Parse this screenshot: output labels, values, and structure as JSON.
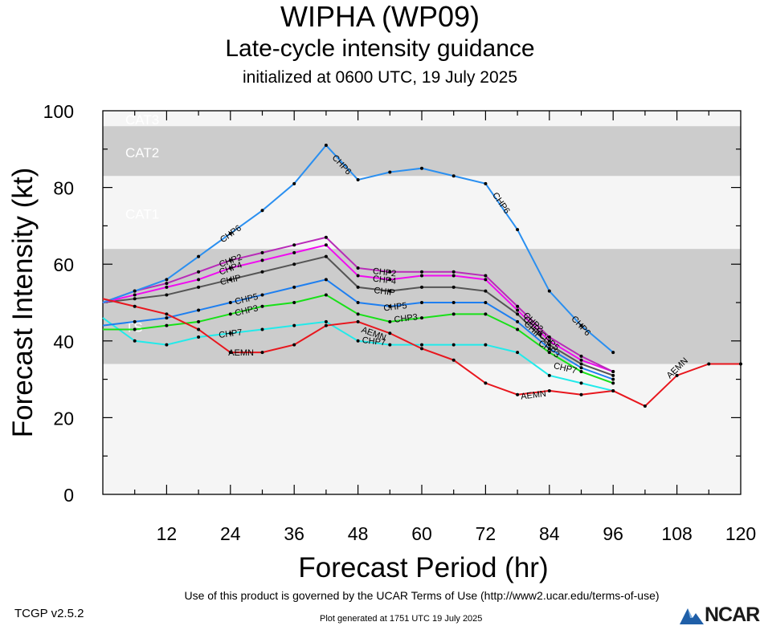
{
  "header": {
    "title": "WIPHA (WP09)",
    "subtitle": "Late-cycle intensity guidance",
    "initialized": "initialized at 0600 UTC, 19 July 2025"
  },
  "footer": {
    "terms": "Use of this product is governed by the UCAR Terms of Use (http://www2.ucar.edu/terms-of-use)",
    "version": "TCGP v2.5.2",
    "generated": "Plot generated at 1751 UTC   19 July 2025",
    "logo_text": "NCAR"
  },
  "colors": {
    "band_dark": "#cccccc",
    "band_light": "#f5f5f5",
    "AEMN": "#e8161d",
    "CHP2": "#b82bb8",
    "CHP3": "#18e018",
    "CHP4": "#f00cf0",
    "CHP5": "#1e7ff0",
    "CHP6": "#2a8ff0",
    "CHP7": "#22eaea",
    "CHIP": "#555555"
  },
  "chart_data": {
    "type": "line",
    "xlabel": "Forecast Period (hr)",
    "ylabel": "Forecast Intensity (kt)",
    "xlim": [
      0,
      120
    ],
    "ylim": [
      0,
      100
    ],
    "xticks": [
      12,
      24,
      36,
      48,
      60,
      72,
      84,
      96,
      108,
      120
    ],
    "yticks": [
      0,
      20,
      40,
      60,
      80,
      100
    ],
    "bands": [
      {
        "label": "",
        "from": 0,
        "to": 34,
        "shade": "light"
      },
      {
        "label": "TS",
        "from": 34,
        "to": 64,
        "shade": "dark"
      },
      {
        "label": "CAT1",
        "from": 64,
        "to": 83,
        "shade": "light"
      },
      {
        "label": "CAT2",
        "from": 83,
        "to": 96,
        "shade": "dark"
      },
      {
        "label": "CAT3",
        "from": 96,
        "to": 100,
        "shade": "light"
      }
    ],
    "series": [
      {
        "name": "CHP6",
        "x": [
          0,
          6,
          12,
          18,
          24,
          30,
          36,
          42,
          48,
          54,
          60,
          66,
          72,
          78,
          84,
          90,
          96
        ],
        "y": [
          50,
          53,
          56,
          62,
          68,
          74,
          81,
          91,
          82,
          84,
          85,
          83,
          81,
          69,
          53,
          44,
          37
        ]
      },
      {
        "name": "CHP2",
        "x": [
          0,
          6,
          12,
          18,
          24,
          30,
          36,
          42,
          48,
          54,
          60,
          66,
          72,
          78,
          84,
          90,
          96
        ],
        "y": [
          50,
          53,
          55,
          58,
          61,
          63,
          65,
          67,
          59,
          58,
          58,
          58,
          57,
          49,
          41,
          36,
          32
        ]
      },
      {
        "name": "CHP4",
        "x": [
          0,
          6,
          12,
          18,
          24,
          30,
          36,
          42,
          48,
          54,
          60,
          66,
          72,
          78,
          84,
          90,
          96
        ],
        "y": [
          50,
          52,
          54,
          56,
          59,
          61,
          63,
          65,
          57,
          56,
          57,
          57,
          56,
          48,
          40,
          35,
          32
        ]
      },
      {
        "name": "CHIP",
        "x": [
          0,
          6,
          12,
          18,
          24,
          30,
          36,
          42,
          48,
          54,
          60,
          66,
          72,
          78,
          84,
          90,
          96
        ],
        "y": [
          50,
          51,
          52,
          54,
          56,
          58,
          60,
          62,
          54,
          53,
          54,
          54,
          53,
          47,
          39,
          34,
          31
        ]
      },
      {
        "name": "CHP5",
        "x": [
          0,
          6,
          12,
          18,
          24,
          30,
          36,
          42,
          48,
          54,
          60,
          66,
          72,
          78,
          84,
          90,
          96
        ],
        "y": [
          44,
          45,
          46,
          48,
          50,
          52,
          54,
          56,
          50,
          49,
          50,
          50,
          50,
          45,
          38,
          33,
          30
        ]
      },
      {
        "name": "CHP3",
        "x": [
          0,
          6,
          12,
          18,
          24,
          30,
          36,
          42,
          48,
          54,
          60,
          66,
          72,
          78,
          84,
          90,
          96
        ],
        "y": [
          43,
          43,
          44,
          45,
          47,
          49,
          50,
          52,
          47,
          45,
          46,
          47,
          47,
          43,
          37,
          32,
          29
        ]
      },
      {
        "name": "CHP7",
        "x": [
          0,
          6,
          12,
          18,
          24,
          30,
          36,
          42,
          48,
          54,
          60,
          66,
          72,
          78,
          84,
          90,
          96
        ],
        "y": [
          46,
          40,
          39,
          41,
          42,
          43,
          44,
          45,
          40,
          39,
          39,
          39,
          39,
          37,
          31,
          29,
          27
        ]
      },
      {
        "name": "AEMN",
        "x": [
          0,
          6,
          12,
          18,
          24,
          30,
          36,
          42,
          48,
          54,
          60,
          66,
          72,
          78,
          84,
          90,
          96,
          102,
          108,
          114,
          120
        ],
        "y": [
          51,
          49,
          47,
          43,
          37,
          37,
          39,
          44,
          45,
          42,
          38,
          35,
          29,
          26,
          27,
          26,
          27,
          23,
          31,
          34,
          34
        ]
      }
    ],
    "series_labels": [
      {
        "series": "CHP6",
        "x": 24,
        "y": 68
      },
      {
        "series": "CHP6",
        "x": 45,
        "y": 86
      },
      {
        "series": "CHP6",
        "x": 75,
        "y": 76
      },
      {
        "series": "CHP6",
        "x": 90,
        "y": 44
      },
      {
        "series": "CHP2",
        "x": 24,
        "y": 61
      },
      {
        "series": "CHP2",
        "x": 53,
        "y": 58
      },
      {
        "series": "CHP2",
        "x": 81,
        "y": 45
      },
      {
        "series": "CHP4",
        "x": 24,
        "y": 59
      },
      {
        "series": "CHP4",
        "x": 53,
        "y": 56
      },
      {
        "series": "CHP4",
        "x": 81,
        "y": 44
      },
      {
        "series": "CHIP",
        "x": 24,
        "y": 56
      },
      {
        "series": "CHIP",
        "x": 53,
        "y": 53
      },
      {
        "series": "CHIP",
        "x": 81,
        "y": 43
      },
      {
        "series": "CHP5",
        "x": 27,
        "y": 51
      },
      {
        "series": "CHP5",
        "x": 55,
        "y": 49
      },
      {
        "series": "CHP5",
        "x": 84,
        "y": 40
      },
      {
        "series": "CHP3",
        "x": 27,
        "y": 48
      },
      {
        "series": "CHP3",
        "x": 57,
        "y": 46
      },
      {
        "series": "CHP3",
        "x": 84,
        "y": 38
      },
      {
        "series": "CHP7",
        "x": 24,
        "y": 42
      },
      {
        "series": "CHP7",
        "x": 51,
        "y": 40
      },
      {
        "series": "CHP7",
        "x": 87,
        "y": 33
      },
      {
        "series": "AEMN",
        "x": 26,
        "y": 37
      },
      {
        "series": "AEMN",
        "x": 51,
        "y": 42
      },
      {
        "series": "AEMN",
        "x": 81,
        "y": 26
      },
      {
        "series": "AEMN",
        "x": 108,
        "y": 33
      }
    ]
  }
}
